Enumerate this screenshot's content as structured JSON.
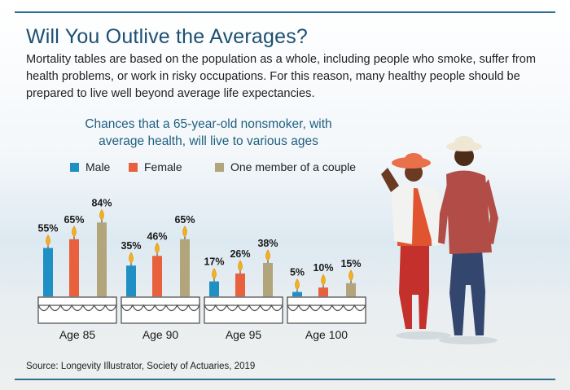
{
  "title": "Will You Outlive the Averages?",
  "intro": "Mortality tables are based on the population as a whole, including people who smoke, suffer from health problems, or work in risky occupations. For this reason, many healthy people should be prepared to live well beyond average life expectancies.",
  "source": "Source: Longevity Illustrator, Society of Actuaries, 2019",
  "colors": {
    "male": "#1f8fc4",
    "female": "#e8603c",
    "couple": "#b3a57b",
    "accent": "#1d4f72"
  },
  "chart_data": {
    "type": "bar",
    "title": "Chances that a 65-year-old nonsmoker, with average health, will live to various ages",
    "categories": [
      "Age 85",
      "Age 90",
      "Age 95",
      "Age 100"
    ],
    "series": [
      {
        "name": "Male",
        "values": [
          55,
          35,
          17,
          5
        ],
        "color": "#1f8fc4"
      },
      {
        "name": "Female",
        "values": [
          65,
          46,
          26,
          10
        ],
        "color": "#e8603c"
      },
      {
        "name": "One member of a couple",
        "values": [
          84,
          65,
          38,
          15
        ],
        "color": "#b3a57b"
      }
    ],
    "value_suffix": "%",
    "ylim": [
      0,
      100
    ],
    "legend": "top"
  }
}
